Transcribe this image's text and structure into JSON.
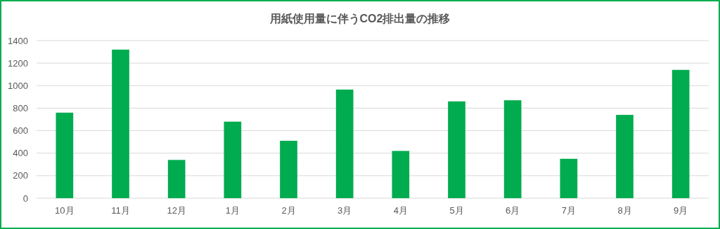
{
  "chart_data": {
    "type": "bar",
    "title": "用紙使用量に伴うCO2排出量の推移",
    "categories": [
      "10月",
      "11月",
      "12月",
      "1月",
      "2月",
      "3月",
      "4月",
      "5月",
      "6月",
      "7月",
      "8月",
      "9月"
    ],
    "values": [
      760,
      1320,
      340,
      680,
      510,
      965,
      420,
      860,
      870,
      350,
      740,
      1140
    ],
    "color": "#00ac4f",
    "ylim": [
      0,
      1400
    ],
    "yticks": [
      0,
      200,
      400,
      600,
      800,
      1000,
      1200,
      1400
    ],
    "grid": "y"
  }
}
